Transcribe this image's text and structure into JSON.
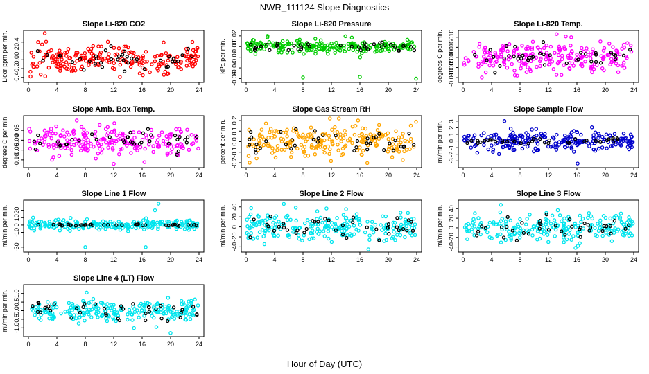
{
  "figure": {
    "title": "NWR_111124  Slope Diagnostics",
    "xlabel": "Hour of Day (UTC)"
  },
  "chart_data": [
    {
      "type": "scatter",
      "title": "Slope Li-820 CO2",
      "ylabel": "Licor ppm per min.",
      "color": "#ff0000",
      "xlim": [
        0,
        24
      ],
      "ylim": [
        -0.45,
        0.6
      ],
      "xticks": [
        0,
        4,
        8,
        12,
        16,
        20,
        24
      ],
      "yticks": [
        -0.4,
        -0.2,
        0.0,
        0.2,
        0.4
      ],
      "ytick_labels": [
        "-0.4",
        "-0.2",
        "0.0",
        "0.2",
        "0.4"
      ],
      "series_spread": 0.15,
      "black_spread": 0.13,
      "outliers": [
        [
          2.3,
          0.6
        ],
        [
          16.1,
          -0.35
        ],
        [
          0.3,
          -0.38
        ]
      ]
    },
    {
      "type": "scatter",
      "title": "Slope Li-820 Pressure",
      "ylabel": "kPa per min.",
      "color": "#00cc00",
      "xlim": [
        0,
        24
      ],
      "ylim": [
        -0.062,
        0.025
      ],
      "xticks": [
        0,
        4,
        8,
        12,
        16,
        20,
        24
      ],
      "yticks": [
        -0.06,
        -0.04,
        -0.02,
        0.0,
        0.02
      ],
      "ytick_labels": [
        "-0.06",
        "-0.04",
        "-0.02",
        "0.00",
        "0.02"
      ],
      "series_spread": 0.006,
      "black_spread": 0.004,
      "outliers": [
        [
          8.0,
          -0.058
        ],
        [
          16.0,
          -0.057
        ],
        [
          23.9,
          -0.06
        ],
        [
          3.0,
          0.02
        ]
      ]
    },
    {
      "type": "scatter",
      "title": "Slope Li-820 Temp.",
      "ylabel": "degrees C per min.",
      "color": "#ff00ff",
      "xlim": [
        0,
        24
      ],
      "ylim": [
        -0.011,
        0.012
      ],
      "xticks": [
        0,
        4,
        8,
        12,
        16,
        20,
        24
      ],
      "yticks": [
        -0.01,
        -0.005,
        0.0,
        0.005,
        0.01
      ],
      "ytick_labels": [
        "-0.010",
        "-0.005",
        "0.000",
        "0.005",
        "0.010"
      ],
      "series_spread": 0.004,
      "black_spread": 0.003,
      "outliers": [
        [
          15.2,
          0.01
        ],
        [
          7.6,
          -0.009
        ]
      ]
    },
    {
      "type": "scatter",
      "title": "Slope Amb. Box Temp.",
      "ylabel": "degrees C per min.",
      "color": "#ff00ff",
      "xlim": [
        0,
        24
      ],
      "ylim": [
        -0.125,
        0.11
      ],
      "xticks": [
        0,
        4,
        8,
        12,
        16,
        20,
        24
      ],
      "yticks": [
        -0.1,
        -0.05,
        0.0,
        0.05
      ],
      "ytick_labels": [
        "-0.10",
        "-0.05",
        "0.00",
        "0.05"
      ],
      "series_spread": 0.035,
      "black_spread": 0.025,
      "outliers": [
        [
          12.0,
          -0.12
        ],
        [
          6.8,
          0.1
        ]
      ]
    },
    {
      "type": "scatter",
      "title": "Slope Gas Stream RH",
      "ylabel": "percent per min.",
      "color": "#ffa500",
      "xlim": [
        0,
        24
      ],
      "ylim": [
        -0.22,
        0.22
      ],
      "xticks": [
        0,
        4,
        8,
        12,
        16,
        20,
        24
      ],
      "yticks": [
        -0.2,
        -0.1,
        0.0,
        0.1,
        0.2
      ],
      "ytick_labels": [
        "-0.2",
        "-0.1",
        "0.0",
        "0.1",
        "0.2"
      ],
      "series_spread": 0.08,
      "black_spread": 0.06,
      "outliers": [
        [
          23.9,
          0.19
        ],
        [
          0.5,
          -0.2
        ]
      ]
    },
    {
      "type": "scatter",
      "title": "Slope Sample Flow",
      "ylabel": "ml/min per min.",
      "color": "#0000cc",
      "xlim": [
        0,
        24
      ],
      "ylim": [
        -3.6,
        3.4
      ],
      "xticks": [
        0,
        4,
        8,
        12,
        16,
        20,
        24
      ],
      "yticks": [
        -3,
        -2,
        -1,
        0,
        1,
        2,
        3
      ],
      "ytick_labels": [
        "-3",
        "-2",
        "-1",
        "0",
        "1",
        "2",
        "3"
      ],
      "series_spread": 0.7,
      "black_spread": 0.25,
      "outliers": [
        [
          16.1,
          -3.4
        ],
        [
          5.8,
          3.0
        ]
      ]
    },
    {
      "type": "scatter",
      "title": "Slope Line 1 Flow",
      "ylabel": "ml/min per min.",
      "color": "#00e5ee",
      "xlim": [
        0,
        24
      ],
      "ylim": [
        -33,
        30
      ],
      "xticks": [
        0,
        4,
        8,
        12,
        16,
        20,
        24
      ],
      "yticks": [
        -30,
        -10,
        0,
        10,
        20
      ],
      "ytick_labels": [
        "-30",
        "-10",
        "0",
        "10",
        "20"
      ],
      "series_spread": 3.5,
      "black_spread": 0.6,
      "outliers": [
        [
          18.3,
          29
        ],
        [
          8.0,
          -30
        ],
        [
          16.5,
          -30
        ],
        [
          17.8,
          20
        ]
      ]
    },
    {
      "type": "scatter",
      "title": "Slope Line 2 Flow",
      "ylabel": "ml/min per min.",
      "color": "#00e5ee",
      "xlim": [
        0,
        24
      ],
      "ylim": [
        -45,
        48
      ],
      "xticks": [
        0,
        4,
        8,
        12,
        16,
        20,
        24
      ],
      "yticks": [
        -40,
        -20,
        0,
        20,
        40
      ],
      "ytick_labels": [
        "-40",
        "-20",
        "0",
        "20",
        "40"
      ],
      "series_spread": 14,
      "black_spread": 12,
      "outliers": [
        [
          5.3,
          46
        ],
        [
          17.2,
          -45
        ]
      ]
    },
    {
      "type": "scatter",
      "title": "Slope Line 3 Flow",
      "ylabel": "ml/min per min.",
      "color": "#00e5ee",
      "xlim": [
        0,
        24
      ],
      "ylim": [
        -45,
        52
      ],
      "xticks": [
        0,
        4,
        8,
        12,
        16,
        20,
        24
      ],
      "yticks": [
        -40,
        -20,
        0,
        20,
        40
      ],
      "ytick_labels": [
        "-40",
        "-20",
        "0",
        "20",
        "40"
      ],
      "series_spread": 14,
      "black_spread": 12,
      "outliers": [
        [
          5.3,
          48
        ],
        [
          15.8,
          -42
        ]
      ]
    },
    {
      "type": "scatter",
      "title": "Slope Line 4 (LT) Flow",
      "ylabel": "ml/min per min.",
      "color": "#00e5ee",
      "xlim": [
        0,
        24
      ],
      "ylim": [
        -1.35,
        1.35
      ],
      "xticks": [
        0,
        4,
        8,
        12,
        16,
        20,
        24
      ],
      "yticks": [
        -1.0,
        -0.5,
        0.0,
        0.5,
        1.0
      ],
      "ytick_labels": [
        "-1.0",
        "-0.5",
        "0.0",
        "0.5",
        "1.0"
      ],
      "series_spread": 0.3,
      "black_spread": 0.28,
      "outliers": [
        [
          20.0,
          -1.3
        ],
        [
          18.0,
          -0.95
        ],
        [
          8.2,
          1.05
        ]
      ]
    }
  ]
}
